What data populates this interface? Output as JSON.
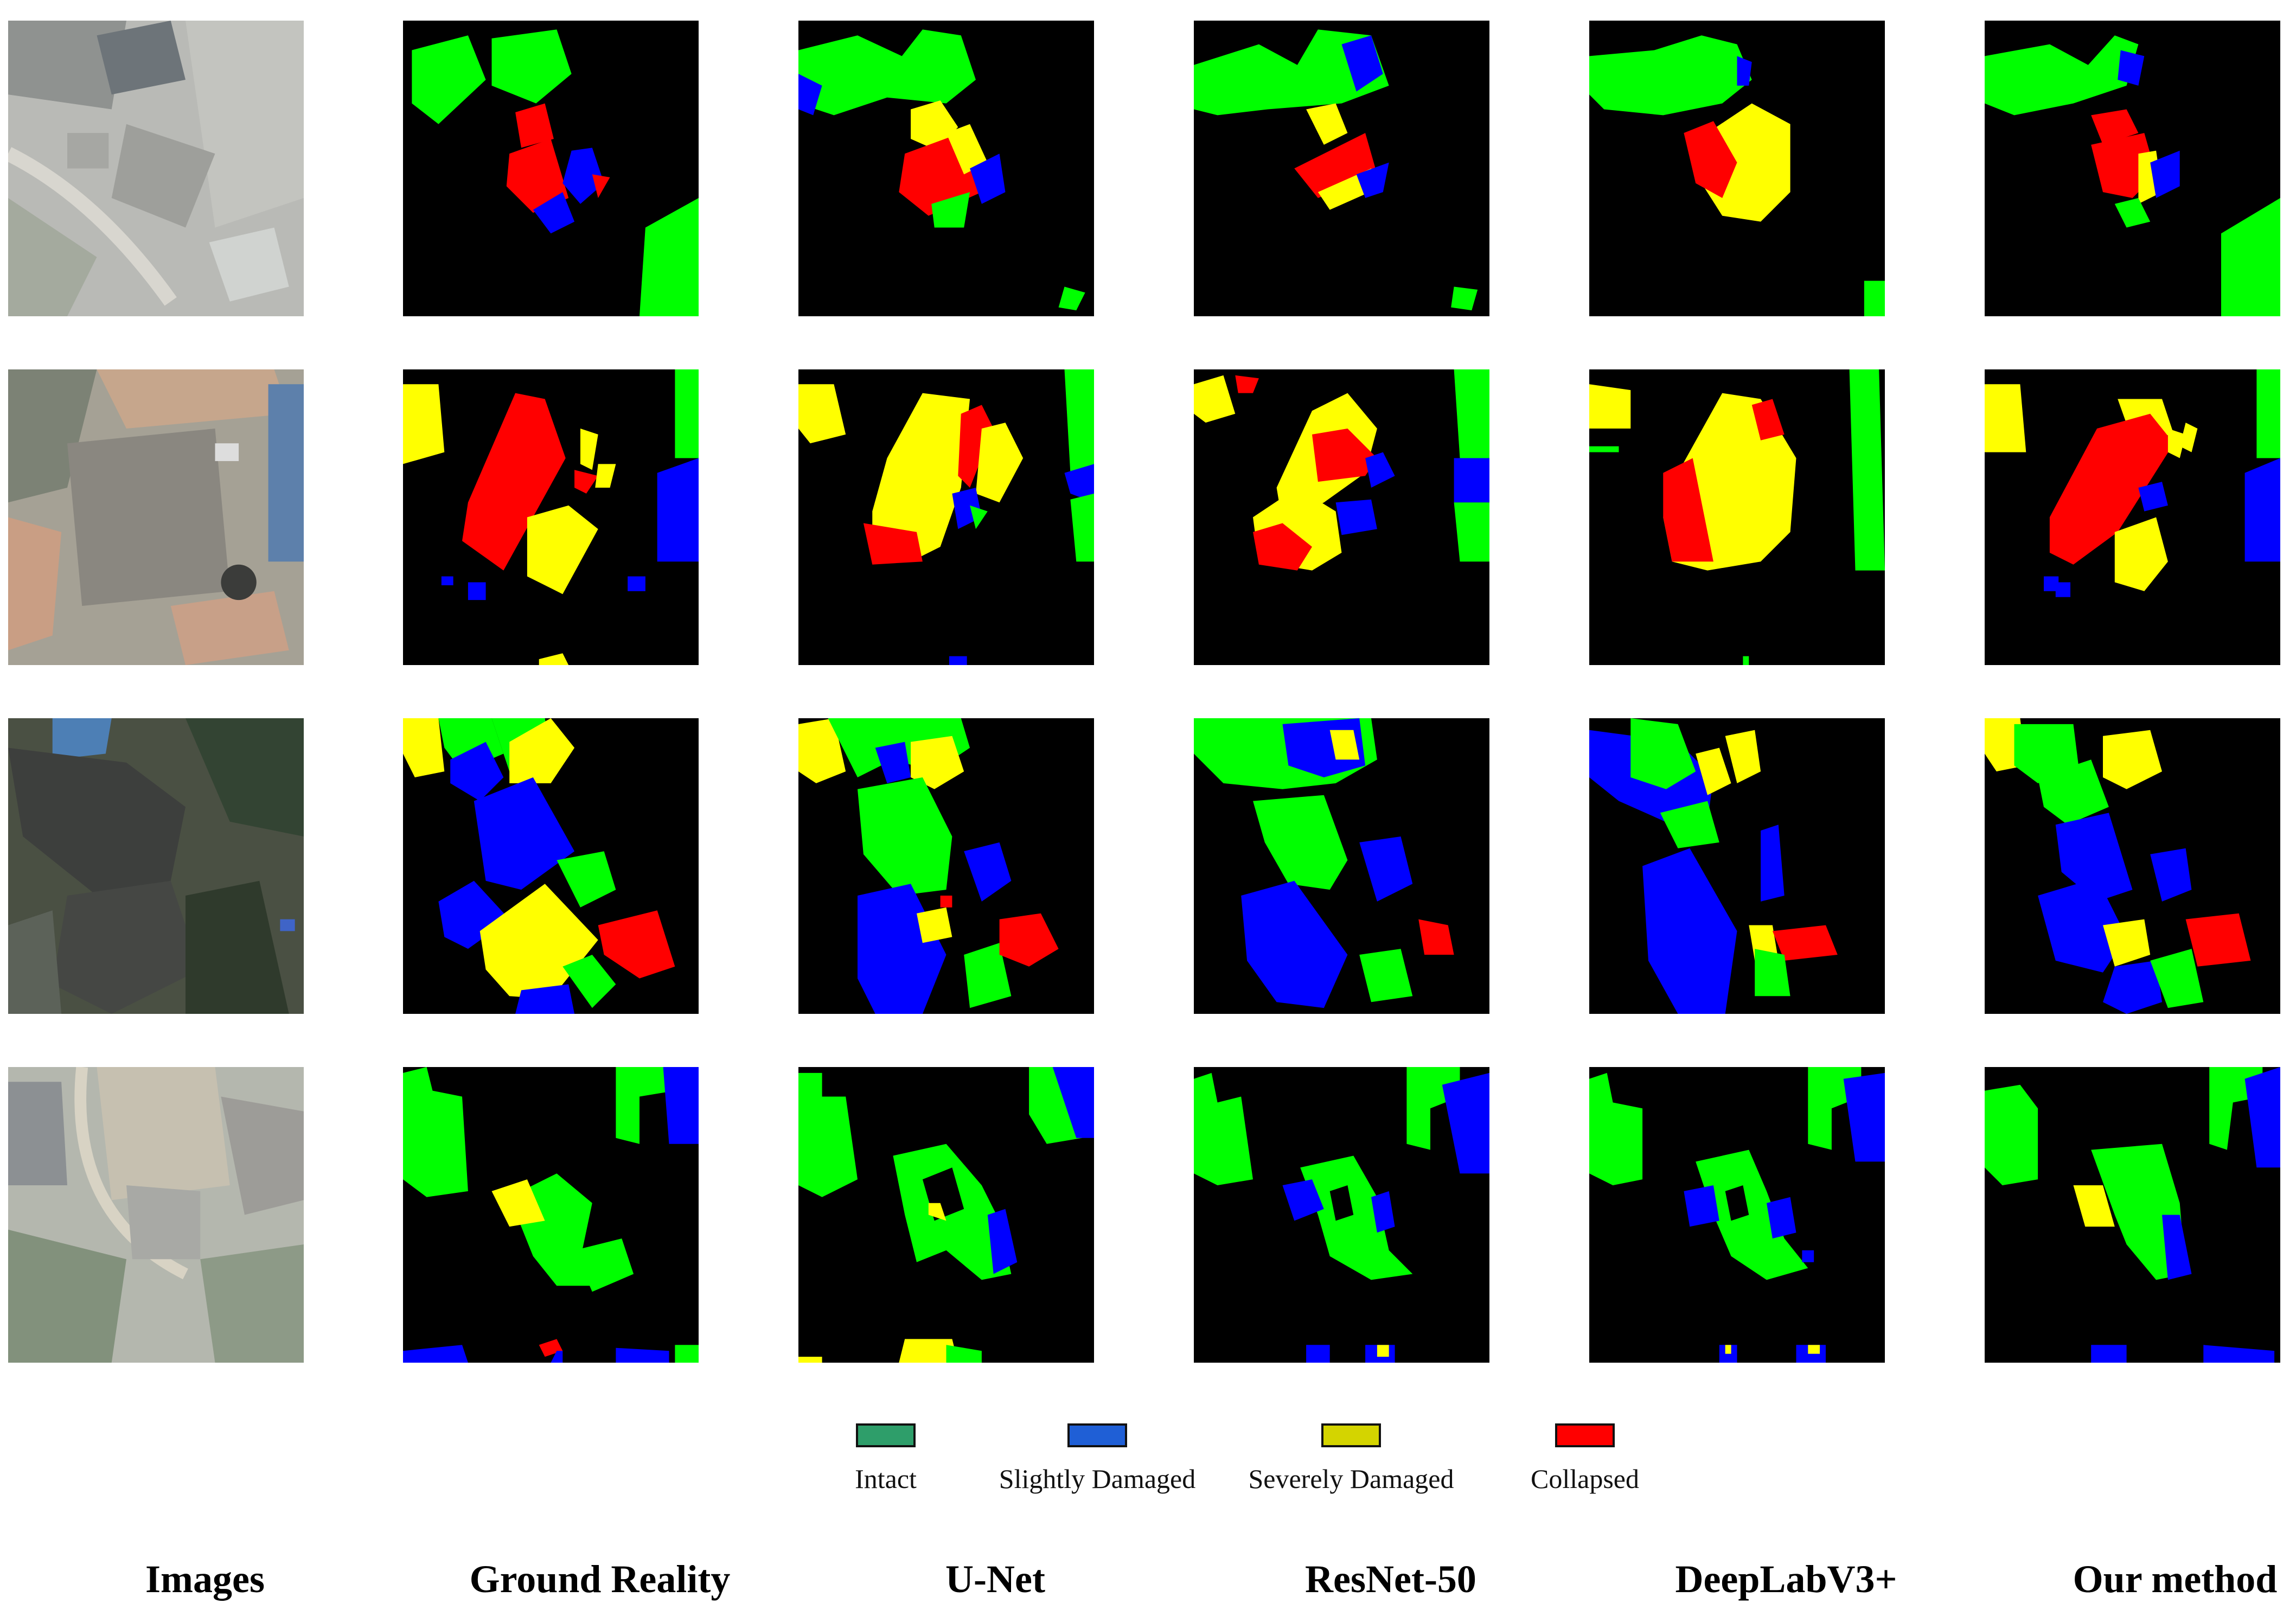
{
  "colors": {
    "intact": "#00ff00",
    "slightly_damaged": "#0000ff",
    "severely_damaged": "#ffff00",
    "collapsed": "#ff0000",
    "background": "#000000"
  },
  "legend": [
    {
      "label": "Intact",
      "color": "#2e9e6a"
    },
    {
      "label": "Slightly Damaged",
      "color": "#1f5fd6"
    },
    {
      "label": "Severely Damaged",
      "color": "#d4d400"
    },
    {
      "label": "Collapsed",
      "color": "#ff0000"
    }
  ],
  "columns": [
    "Images",
    "Ground Reality",
    "U-Net",
    "ResNet-50",
    "DeepLabV3+",
    "Our method"
  ]
}
